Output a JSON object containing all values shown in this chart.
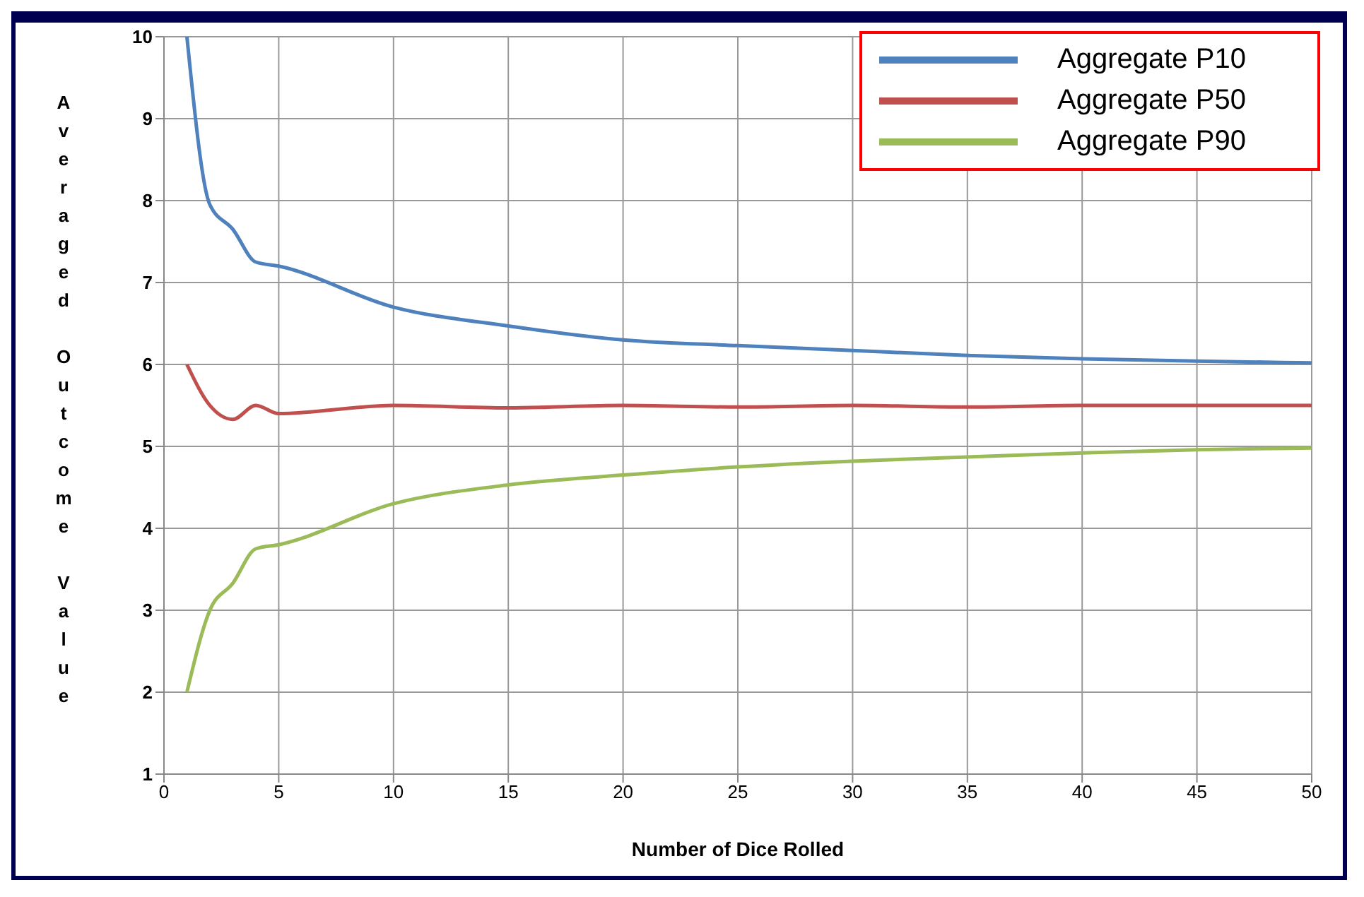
{
  "chart_data": {
    "type": "line",
    "xlabel": "Number of Dice Rolled",
    "ylabel": "Averaged Outcome Value",
    "x": [
      1,
      2,
      3,
      4,
      5,
      10,
      15,
      20,
      25,
      30,
      35,
      40,
      45,
      50
    ],
    "series": [
      {
        "name": "Aggregate P10",
        "color": "#4f81bd",
        "values": [
          10,
          7.95,
          7.65,
          7.25,
          7.2,
          6.7,
          6.47,
          6.3,
          6.23,
          6.17,
          6.11,
          6.07,
          6.04,
          6.02
        ]
      },
      {
        "name": "Aggregate P50",
        "color": "#c0504d",
        "values": [
          6,
          5.5,
          5.33,
          5.5,
          5.4,
          5.5,
          5.47,
          5.5,
          5.48,
          5.5,
          5.48,
          5.5,
          5.5,
          5.5
        ]
      },
      {
        "name": "Aggregate P90",
        "color": "#9bbb59",
        "values": [
          2,
          3,
          3.33,
          3.75,
          3.8,
          4.3,
          4.53,
          4.65,
          4.75,
          4.82,
          4.87,
          4.92,
          4.96,
          4.98
        ]
      }
    ],
    "xlim": [
      0,
      50
    ],
    "xticks": [
      0,
      5,
      10,
      15,
      20,
      25,
      30,
      35,
      40,
      45,
      50
    ],
    "ylim": [
      1,
      10
    ],
    "yticks": [
      1,
      2,
      3,
      4,
      5,
      6,
      7,
      8,
      9,
      10
    ],
    "grid": true,
    "legend": "top right",
    "marker": "none",
    "line_style": "solid"
  }
}
